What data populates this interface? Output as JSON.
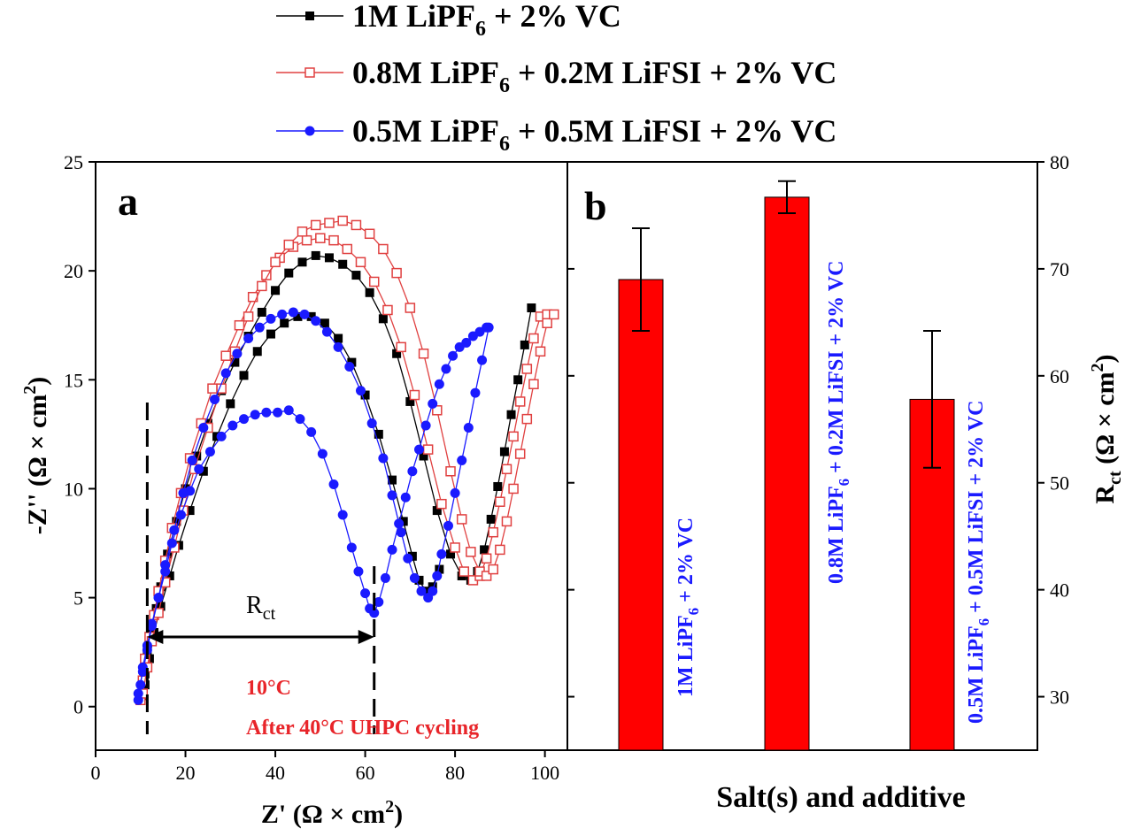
{
  "legend": [
    {
      "pre": "1M LiPF",
      "sub": "6",
      "post": " + 2% VC",
      "color": "#000000",
      "marker": "square-filled"
    },
    {
      "pre": "0.8M LiPF",
      "sub": "6",
      "post": " + 0.2M LiFSI + 2% VC",
      "color": "#e04040",
      "marker": "square-open"
    },
    {
      "pre": "0.5M LiPF",
      "sub": "6",
      "post": " + 0.5M LiFSI + 2% VC",
      "color": "#1a1aff",
      "marker": "circle-filled"
    }
  ],
  "panel_a": {
    "letter": "a",
    "xlabel_pre": "Z' (Ω × cm",
    "xlabel_sup": "2",
    "xlabel_post": ")",
    "ylabel_pre": "-Z'' (Ω × cm",
    "ylabel_sup": "2",
    "ylabel_post": ")",
    "rct_main": "R",
    "rct_sub": "ct",
    "temp_label": "10°C",
    "note_label": "After 40°C UHPC cycling",
    "annotation_color": "#e8252a"
  },
  "panel_b": {
    "letter": "b",
    "xlabel": "Salt(s) and additive",
    "ylabel_main": "R",
    "ylabel_sub": "ct",
    "ylabel_rest": " (Ω × cm",
    "ylabel_sup": "2",
    "ylabel_post": ")",
    "bar_color": "#ff0000",
    "label_color": "#1a1aff"
  },
  "chart_data": [
    {
      "type": "scatter",
      "panel": "a",
      "xlim": [
        0,
        105
      ],
      "ylim": [
        -2,
        25
      ],
      "xticks": [
        0,
        20,
        40,
        60,
        80,
        100
      ],
      "yticks": [
        0,
        5,
        10,
        15,
        20,
        25
      ],
      "grid": false,
      "series": [
        {
          "name": "1M LiPF6 + 2% VC",
          "color": "#000000",
          "marker": "square-filled",
          "x": [
            10.5,
            11,
            11.5,
            12.5,
            13.5,
            14.5,
            16,
            18,
            20,
            22.5,
            25,
            28,
            31,
            34,
            37,
            40,
            43,
            46,
            49,
            52,
            55,
            58,
            61,
            64,
            67,
            70,
            73,
            76,
            79,
            81.5,
            83.5,
            85,
            86.5,
            88,
            89.5,
            91,
            92.5,
            94,
            95.5,
            97
          ],
          "y": [
            0.5,
            1.5,
            2.5,
            3.5,
            4.5,
            5.5,
            7,
            8.5,
            10,
            11.5,
            13,
            14.5,
            15.8,
            17,
            18.1,
            19.1,
            19.9,
            20.4,
            20.7,
            20.6,
            20.3,
            19.8,
            19,
            17.8,
            16.2,
            14,
            11.5,
            9,
            7,
            6,
            5.8,
            6.2,
            7.2,
            8.6,
            10.1,
            11.7,
            13.4,
            15,
            16.6,
            18.3
          ]
        },
        {
          "name": "1M LiPF6 + 2% VC",
          "color": "#000000",
          "marker": "square-filled",
          "x": [
            11,
            12,
            13,
            14.5,
            16.5,
            18.5,
            21,
            24,
            27,
            30,
            33,
            36,
            39,
            42,
            45,
            48,
            51,
            54,
            57,
            60,
            63,
            66,
            68.5,
            70.5,
            72,
            73.5,
            75,
            76.5
          ],
          "y": [
            1,
            2.2,
            3.4,
            4.6,
            6,
            7.4,
            9,
            10.8,
            12.4,
            13.9,
            15.2,
            16.3,
            17.1,
            17.6,
            17.9,
            17.9,
            17.6,
            16.9,
            15.8,
            14.3,
            12.5,
            10.4,
            8.5,
            6.9,
            5.8,
            5.3,
            5.5,
            6.3
          ]
        },
        {
          "name": "0.8M LiPF6 + 0.2M LiFSI + 2% VC",
          "color": "#e04040",
          "marker": "square-open",
          "x": [
            10,
            10.5,
            11,
            12,
            13,
            14,
            15.5,
            17,
            19,
            21,
            23.5,
            26,
            29,
            32,
            35,
            38,
            41,
            44,
            47,
            50,
            53,
            56,
            59,
            62,
            65,
            68,
            71,
            74,
            77,
            80,
            82,
            84,
            85.5,
            87,
            88.5,
            90,
            91.5,
            93,
            94.5,
            96,
            97.5,
            99,
            100.5
          ],
          "y": [
            0.3,
            1.2,
            2.2,
            3.2,
            4.2,
            5.3,
            6.7,
            8.2,
            9.8,
            11.4,
            13,
            14.6,
            16.1,
            17.5,
            18.8,
            19.8,
            20.6,
            21.1,
            21.4,
            21.5,
            21.4,
            21,
            20.4,
            19.5,
            18.2,
            16.5,
            14.3,
            11.8,
            9.3,
            7.3,
            6.2,
            5.8,
            6,
            6.8,
            8,
            9.4,
            10.9,
            12.4,
            14,
            15.5,
            16.9,
            17.9,
            18
          ]
        },
        {
          "name": "0.8M LiPF6 + 0.2M LiFSI + 2% VC",
          "color": "#e04040",
          "marker": "square-open",
          "x": [
            10.5,
            11.5,
            12.5,
            14,
            15.5,
            17.5,
            19.5,
            22,
            25,
            28,
            31,
            34,
            37,
            40,
            43,
            46,
            49,
            52,
            55,
            58,
            61,
            64,
            67,
            70,
            73,
            76,
            79,
            81.5,
            83.5,
            85.5,
            87,
            88.5,
            90,
            91.5,
            93,
            94.5,
            96,
            97.5,
            99,
            100.5,
            102
          ],
          "y": [
            0.6,
            1.8,
            3,
            4.3,
            5.7,
            7.3,
            9,
            10.9,
            12.8,
            14.6,
            16.3,
            17.9,
            19.3,
            20.4,
            21.2,
            21.8,
            22.1,
            22.2,
            22.3,
            22.1,
            21.7,
            21,
            19.9,
            18.3,
            16.2,
            13.6,
            10.8,
            8.6,
            7.1,
            6.2,
            6,
            6.3,
            7.2,
            8.5,
            10,
            11.6,
            13.2,
            14.8,
            16.3,
            17.6,
            18
          ]
        },
        {
          "name": "0.5M LiPF6 + 0.5M LiFSI + 2% VC",
          "color": "#1a1aff",
          "marker": "circle-filled",
          "x": [
            9.5,
            10,
            10.5,
            11.5,
            12.5,
            14,
            15.5,
            17,
            19,
            21,
            23,
            25.5,
            28,
            30.5,
            33,
            35.5,
            38,
            40.5,
            43,
            45.5,
            48,
            50.5,
            53,
            55,
            57,
            58.5,
            60,
            61,
            62,
            63,
            64.5,
            66,
            67.5,
            69,
            70.5,
            72,
            73.5,
            75,
            76.5,
            78,
            79.5,
            81,
            82.5,
            84,
            85.5,
            87
          ],
          "y": [
            0.3,
            1,
            1.8,
            2.8,
            3.8,
            5,
            6.2,
            7.5,
            8.8,
            9.9,
            10.9,
            11.7,
            12.4,
            12.9,
            13.2,
            13.4,
            13.5,
            13.5,
            13.6,
            13.2,
            12.6,
            11.6,
            10.2,
            8.8,
            7.3,
            6.2,
            5.2,
            4.5,
            4.3,
            4.8,
            5.9,
            7.2,
            8.4,
            9.6,
            10.8,
            11.8,
            12.9,
            13.9,
            14.8,
            15.5,
            16.1,
            16.5,
            16.7,
            17,
            17.2,
            17.4
          ]
        },
        {
          "name": "0.5M LiPF6 + 0.5M LiFSI + 2% VC",
          "color": "#1a1aff",
          "marker": "circle-filled",
          "x": [
            9.5,
            10.5,
            11.5,
            12.5,
            14,
            15.5,
            17.5,
            19.5,
            21.5,
            24,
            26.5,
            29,
            31.5,
            34,
            36.5,
            39,
            41.5,
            44,
            46.5,
            49,
            51.5,
            54,
            56.5,
            59,
            61.5,
            64,
            66,
            68,
            69.5,
            71,
            72.5,
            74,
            75,
            76,
            77,
            78.5,
            80,
            81.5,
            83,
            84.5,
            86,
            87.5
          ],
          "y": [
            0.6,
            1.6,
            2.6,
            3.7,
            5,
            6.5,
            8.1,
            9.8,
            11.3,
            12.8,
            14.1,
            15.3,
            16.2,
            16.9,
            17.4,
            17.8,
            18,
            18.1,
            18,
            17.7,
            17.2,
            16.5,
            15.6,
            14.5,
            13,
            11.4,
            9.7,
            8,
            6.8,
            5.9,
            5.3,
            5,
            5.3,
            6,
            7,
            8.3,
            9.8,
            11.3,
            12.8,
            14.4,
            15.9,
            17.4
          ]
        }
      ]
    },
    {
      "type": "bar",
      "panel": "b",
      "categories": [
        "1M  LiPF6 + 2% VC",
        "0.8M  LiPF6 + 0.2M LiFSI + 2% VC",
        "0.5M  LiPF6 + 0.5M LiFSI + 2% VC"
      ],
      "values": [
        69,
        76.7,
        57.8
      ],
      "errors": [
        4.8,
        1.5,
        6.4
      ],
      "ylim": [
        25,
        80
      ],
      "yticks": [
        30,
        40,
        50,
        60,
        70,
        80
      ],
      "grid": false
    }
  ]
}
